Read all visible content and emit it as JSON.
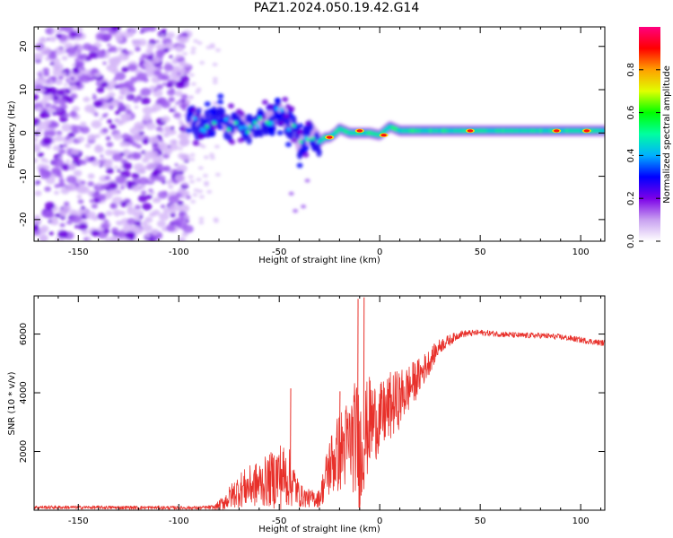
{
  "title": "PAZ1.2024.050.19.42.G14",
  "chart_data": [
    {
      "type": "heatmap",
      "xlabel": "Height of straight line (km)",
      "ylabel": "Frequency (Hz)",
      "xlim": [
        -172,
        112
      ],
      "ylim": [
        -25,
        24.5
      ],
      "xticks": [
        -150,
        -100,
        -50,
        0,
        50,
        100
      ],
      "yticks": [
        -20,
        -10,
        0,
        10,
        20
      ],
      "colorbar": {
        "label": "Normalized spectral amplitude",
        "range": [
          0,
          1
        ],
        "ticks": [
          0.0,
          0.2,
          0.4,
          0.6,
          0.8
        ],
        "colormap": [
          "#ffffff",
          "#c8a0f0",
          "#7b00e8",
          "#0000ff",
          "#00b0ff",
          "#00ffa0",
          "#00ff00",
          "#e0ff00",
          "#ffa000",
          "#ff0000",
          "#ff0080"
        ]
      },
      "regions": [
        {
          "x_range": [
            -172,
            -95
          ],
          "freq_range": [
            -25,
            24.5
          ],
          "amplitude": 0.1,
          "pattern": "noise"
        },
        {
          "x_range": [
            -95,
            -30
          ],
          "freq_range": [
            -10,
            10
          ],
          "amplitude": 0.3,
          "pattern": "wandering"
        },
        {
          "x_range": [
            -30,
            112
          ],
          "freq_range": [
            -1,
            2
          ],
          "amplitude": 0.6,
          "pattern": "steady"
        }
      ],
      "track": {
        "x": [
          -95,
          -90,
          -85,
          -80,
          -75,
          -70,
          -65,
          -60,
          -55,
          -50,
          -45,
          -42,
          -40,
          -37,
          -35,
          -32,
          -30,
          -27,
          -25,
          -22,
          -20,
          -15,
          -10,
          -5,
          0,
          5,
          10,
          20,
          30,
          50,
          70,
          90,
          100,
          112
        ],
        "y": [
          4,
          2,
          2,
          4,
          1,
          3,
          1,
          2,
          3,
          5,
          2,
          1,
          -3,
          -2,
          1,
          -1,
          -2,
          -1,
          -1,
          0,
          1,
          0,
          0,
          0,
          -0.5,
          1.5,
          0.5,
          0.5,
          0.5,
          0.5,
          0.5,
          0.5,
          0.5,
          0.5
        ]
      },
      "hotspots": [
        {
          "x": -25,
          "y": -1
        },
        {
          "x": -10,
          "y": 0.5
        },
        {
          "x": 2,
          "y": -0.5
        },
        {
          "x": 45,
          "y": 0.5
        },
        {
          "x": 88,
          "y": 0.5
        },
        {
          "x": 103,
          "y": 0.5
        }
      ]
    },
    {
      "type": "line",
      "color": "#e8302a",
      "xlabel": "Height of straight line (km)",
      "ylabel": "SNR (10 * v/v)",
      "xlim": [
        -172,
        112
      ],
      "ylim": [
        0,
        7300
      ],
      "xticks": [
        -150,
        -100,
        -50,
        0,
        50,
        100
      ],
      "yticks": [
        2000,
        4000,
        6000
      ],
      "envelope_x": [
        -172,
        -120,
        -90,
        -82,
        -78,
        -70,
        -60,
        -55,
        -50,
        -45,
        -42,
        -40,
        -35,
        -30,
        -25,
        -20,
        -15,
        -12,
        -10,
        -8,
        -5,
        0,
        5,
        10,
        20,
        30,
        40,
        50,
        60,
        70,
        80,
        90,
        100,
        110,
        112
      ],
      "envelope_base": [
        100,
        90,
        80,
        100,
        250,
        700,
        900,
        1000,
        1200,
        1100,
        800,
        500,
        400,
        400,
        1500,
        2000,
        2300,
        2500,
        2000,
        2400,
        3000,
        3100,
        3500,
        3800,
        4600,
        5600,
        6000,
        6050,
        6000,
        5950,
        5950,
        5900,
        5800,
        5700,
        5700
      ],
      "envelope_amp": [
        60,
        60,
        60,
        80,
        250,
        600,
        800,
        900,
        1200,
        1000,
        700,
        400,
        300,
        300,
        1100,
        1400,
        1600,
        2000,
        2200,
        1800,
        1600,
        1200,
        1200,
        1000,
        600,
        250,
        120,
        100,
        100,
        100,
        100,
        100,
        100,
        100,
        100
      ],
      "spikes": [
        {
          "x": -44.5,
          "y": 4150
        },
        {
          "x": -20,
          "y": 4050
        },
        {
          "x": -11,
          "y": 7200
        },
        {
          "x": -8,
          "y": 7250
        },
        {
          "x": -9.5,
          "y": 500
        }
      ]
    }
  ]
}
